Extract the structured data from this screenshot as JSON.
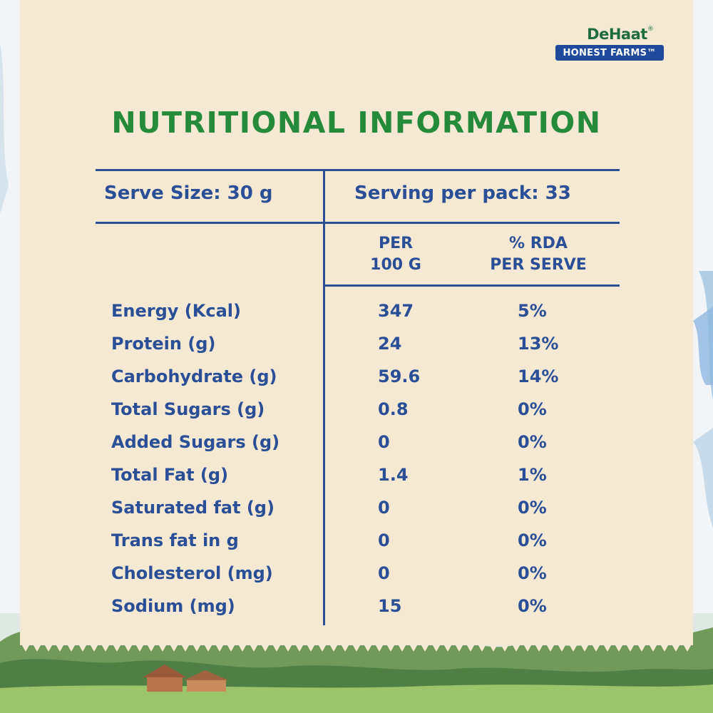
{
  "brand": {
    "name": "DeHaat",
    "tm": "®",
    "tagline": "HONEST FARMS™"
  },
  "headline": "NUTRITIONAL INFORMATION",
  "serving": {
    "size": "Serve Size: 30 g",
    "per_pack": "Serving per pack: 33"
  },
  "columns": {
    "per100_line1": "PER",
    "per100_line2": "100 G",
    "rda_line1": "% RDA",
    "rda_line2": "PER SERVE"
  },
  "rows": [
    {
      "label": "Energy (Kcal)",
      "per100": "347",
      "rda": "5%"
    },
    {
      "label": "Protein (g)",
      "per100": "24",
      "rda": "13%"
    },
    {
      "label": "Carbohydrate (g)",
      "per100": "59.6",
      "rda": "14%"
    },
    {
      "label": "Total Sugars (g)",
      "per100": "0.8",
      "rda": "0%"
    },
    {
      "label": "Added Sugars (g)",
      "per100": "0",
      "rda": "0%"
    },
    {
      "label": "Total Fat (g)",
      "per100": "1.4",
      "rda": "1%"
    },
    {
      "label": "Saturated fat (g)",
      "per100": "0",
      "rda": "0%"
    },
    {
      "label": "Trans fat in g",
      "per100": "0",
      "rda": "0%"
    },
    {
      "label": "Cholesterol (mg)",
      "per100": "0",
      "rda": "0%"
    },
    {
      "label": "Sodium (mg)",
      "per100": "15",
      "rda": "0%"
    }
  ],
  "colors": {
    "card": "#f5e9d3",
    "headline": "#258a3c",
    "table_text": "#2a4f97",
    "brand_tag_bg": "#1f4a9c"
  }
}
